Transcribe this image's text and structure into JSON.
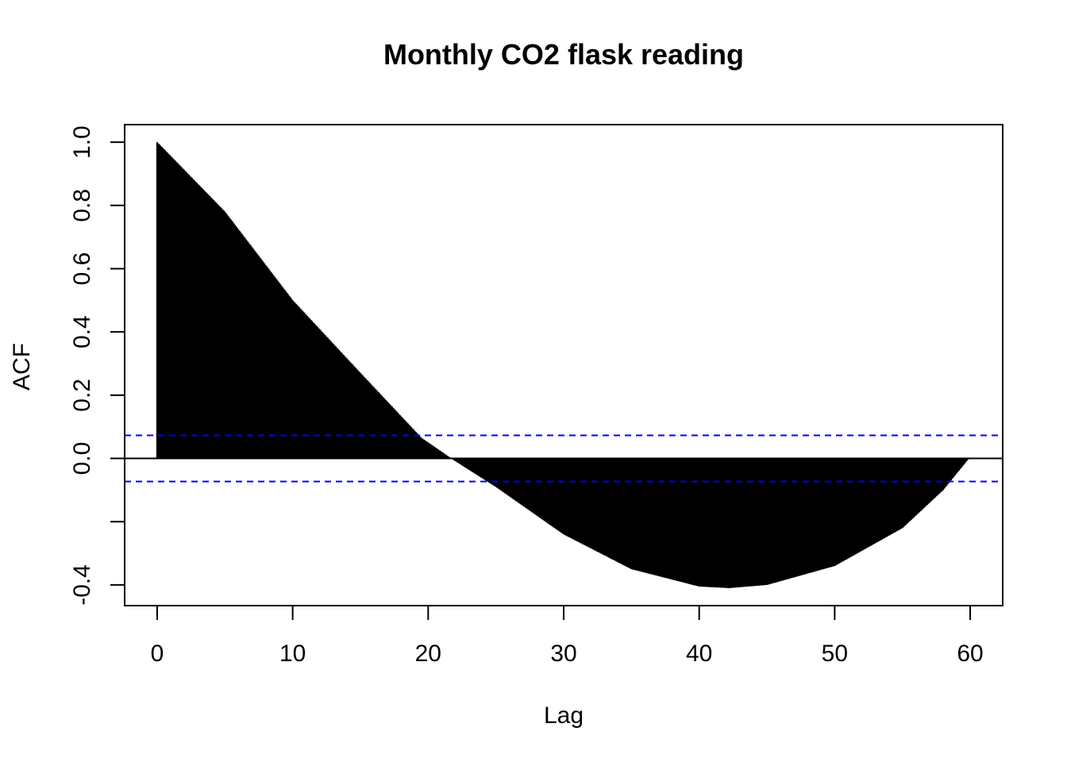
{
  "chart_data": {
    "type": "bar",
    "title": "Monthly CO2 flask reading",
    "xlabel": "Lag",
    "ylabel": "ACF",
    "xlim": [
      -2.4,
      62.4
    ],
    "ylim": [
      -0.4655,
      1.0555
    ],
    "x_ticks": [
      0,
      10,
      20,
      30,
      40,
      50,
      60
    ],
    "x_tick_labels": [
      "0",
      "10",
      "20",
      "30",
      "40",
      "50",
      "60"
    ],
    "y_ticks": [
      -0.4,
      -0.2,
      0.0,
      0.2,
      0.4,
      0.6,
      0.8,
      1.0
    ],
    "y_tick_labels": [
      "-0.4",
      "",
      "0.0",
      "0.2",
      "0.4",
      "0.6",
      "0.8",
      "1.0"
    ],
    "lag_step": 0.0833333,
    "n_lags": 719,
    "acf_profile": {
      "lags": [
        0,
        5,
        10,
        15,
        19.5,
        21.7,
        25,
        30,
        35,
        40,
        42.2,
        45,
        50,
        55,
        58,
        59.9
      ],
      "values": [
        1.0,
        0.78,
        0.5,
        0.27,
        0.065,
        0.0,
        -0.09,
        -0.24,
        -0.35,
        -0.405,
        -0.41,
        -0.4,
        -0.34,
        -0.22,
        -0.1,
        0.0
      ]
    },
    "confidence_bounds": [
      0.073,
      -0.073
    ],
    "confidence_color": "#0000ff",
    "bar_color": "#000000",
    "grid": false,
    "legend": "none"
  }
}
